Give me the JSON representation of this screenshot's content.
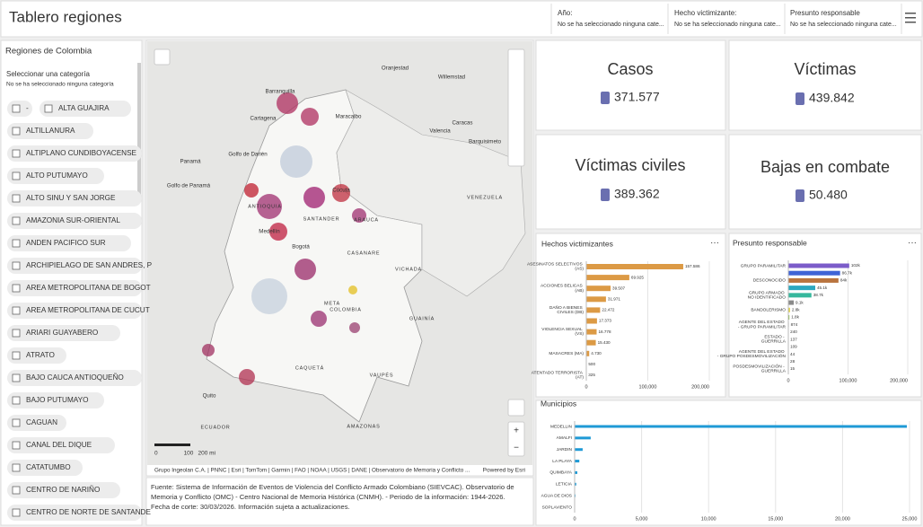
{
  "header": {
    "title": "Tablero regiones",
    "filters": [
      {
        "label": "Año:",
        "value": "No se ha seleccionado ninguna cate..."
      },
      {
        "label": "Hecho victimizante:",
        "value": "No se ha seleccionado ninguna cate..."
      },
      {
        "label": "Presunto responsable",
        "value": "No se ha seleccionado ninguna cate..."
      }
    ]
  },
  "sidebar": {
    "title": "Regiones de Colombia",
    "prompt": "Seleccionar una categoría",
    "hint": "No se ha seleccionado ninguna categoría",
    "items": [
      "-",
      "ALTA GUAJIRA",
      "ALTILLANURA",
      "ALTIPLANO CUNDIBOYACENSE",
      "ALTO PUTUMAYO",
      "ALTO SINU Y SAN JORGE",
      "AMAZONIA SUR-ORIENTAL",
      "ANDEN PACIFICO SUR",
      "ARCHIPIELAGO DE SAN ANDRES, P",
      "AREA METROPOLITANA DE BOGOT",
      "AREA METROPOLITANA DE CUCUT",
      "ARIARI GUAYABERO",
      "ATRATO",
      "BAJO CAUCA ANTIOQUEÑO",
      "BAJO PUTUMAYO",
      "CAGUAN",
      "CANAL DEL DIQUE",
      "CATATUMBO",
      "CENTRO DE NARIÑO",
      "CENTRO DE NORTE DE SANTANDE"
    ]
  },
  "map": {
    "labels": [
      "Oranjestad",
      "Willemstad",
      "Barranquilla",
      "Cartagena",
      "Maracaibo",
      "Caracas",
      "Valencia",
      "Barquisimeto",
      "Panamá",
      "Golfo de Panamá",
      "Golfo de Darién",
      "Cúcuta",
      "Medellín",
      "Bogotá",
      "VENEZUELA",
      "COLOMBIA",
      "ANTIOQUIA",
      "SANTANDER",
      "ARAUCA",
      "CASANARE",
      "VICHADA",
      "META",
      "GUAINÍA",
      "CAQUETÁ",
      "VAUPÉS",
      "AMAZONAS",
      "Quito",
      "ECUADOR"
    ],
    "scale": [
      "0",
      "100",
      "200 mi"
    ],
    "attribution": "Grupo Ingeolan C.A. | PNNC | Esri | TomTom | Garmin | FAO | NOAA | USGS | DANE | Observatorio de Memoria y Conflicto ...",
    "powered": "Powered by Esri"
  },
  "note": {
    "lines": [
      "Fuente: Sistema de Información de Eventos de Violencia del Conflicto Armado Colombiano (SIEVCAC). Observatorio de",
      "Memoria y Conflicto (OMC) - Centro Nacional de Memoria Histórica (CNMH). - Periodo de la información: 1944-2026.",
      "Fecha de corte: 30/03/2026. Información sujeta a actualizaciones."
    ]
  },
  "kpis": [
    {
      "title": "Casos",
      "value": "371.577"
    },
    {
      "title": "Víctimas",
      "value": "439.842"
    },
    {
      "title": "Víctimas civiles",
      "value": "389.362"
    },
    {
      "title": "Bajas en combate",
      "value": "50.480"
    }
  ],
  "hechos": {
    "type": "bar",
    "title": "Hechos victimizantes",
    "categories": [
      "ASESINATOS SELECTIVOS (AS)",
      null,
      "ACCIONES BELICAS (AB)",
      null,
      "DAÑO A BIENES CIVILES (DB)",
      null,
      "VIOLENCIA SEXUAL (VS)",
      null,
      "MASACRES (MA)",
      null,
      "ATENTADO TERRORISTA (AT)"
    ],
    "values": [
      157586,
      69925,
      39507,
      31971,
      22472,
      17373,
      16778,
      15430,
      4730,
      500,
      325
    ],
    "value_labels": [
      "157.586",
      "69.925",
      "39.507",
      "31.971",
      "22.472",
      "17.373",
      "16.778",
      "15.430",
      "4.730",
      "500",
      "325"
    ],
    "color": "#dc9a45",
    "xlim": [
      0,
      200000
    ],
    "xticks": [
      0,
      {
        "value": 100000,
        "label": "100,000"
      },
      {
        "value": 200000,
        "label": "200,000"
      }
    ]
  },
  "presunto": {
    "type": "bar",
    "title": "Presunto responsable",
    "categories": [
      "GRUPO PARAMILITAR",
      null,
      "DESCONOCIDO",
      null,
      "GRUPO ARMADO NO IDENTIFICADO",
      null,
      "BANDOLERISMO",
      null,
      "AGENTE DEL ESTADO - GRUPO PARAMILITAR",
      null,
      "ESTADO - GUERRILLA",
      null,
      "AGENTE DEL ESTADO - GRUPO POSDESMOVILIZACIÓN",
      null,
      "POSDESMOVILIZACIÓN - GUERRILLA"
    ],
    "values": [
      102000,
      86700,
      84000,
      45100,
      38700,
      9100,
      2800,
      1800,
      874,
      240,
      137,
      109,
      44,
      28,
      15
    ],
    "value_labels": [
      "102k",
      "86.7k",
      "84k",
      "45.1k",
      "38.7k",
      "9.1k",
      "2.8k",
      "1.8k",
      "874",
      "240",
      "137",
      "109",
      "44",
      "28",
      "15"
    ],
    "colors": [
      "#7b5cc9",
      "#3f63d6",
      "#b9743f",
      "#2aa8c0",
      "#36b89d",
      "#8a8a8a",
      "#e2cf3a",
      "#8cc04a",
      "#9a9a9a",
      "#9a9a9a",
      "#9a9a9a",
      "#9a9a9a",
      "#9a9a9a",
      "#9a9a9a",
      "#9a9a9a"
    ],
    "xlim": [
      0,
      200000
    ],
    "xticks": [
      0,
      {
        "value": 100000,
        "label": "100,000"
      },
      {
        "value": 200000,
        "label": "200,000"
      }
    ]
  },
  "municipios": {
    "type": "bar",
    "title": "Municipios",
    "categories": [
      "MEDELLIN",
      "AMALFI",
      "JARDIN",
      "LA PLAYA",
      "QUIMBAYA",
      "LETICIA",
      "AGUA DE DIOS",
      "SOPLAVIENTO"
    ],
    "values": [
      24800,
      1200,
      600,
      350,
      200,
      120,
      60,
      10
    ],
    "color": "#1f9ad6",
    "xlim": [
      0,
      25000
    ],
    "xticks": [
      0,
      {
        "value": 5000,
        "label": "5,000"
      },
      {
        "value": 10000,
        "label": "10,000"
      },
      {
        "value": 15000,
        "label": "15,000"
      },
      {
        "value": 20000,
        "label": "20,000"
      },
      {
        "value": 25000,
        "label": "25,000"
      }
    ]
  }
}
